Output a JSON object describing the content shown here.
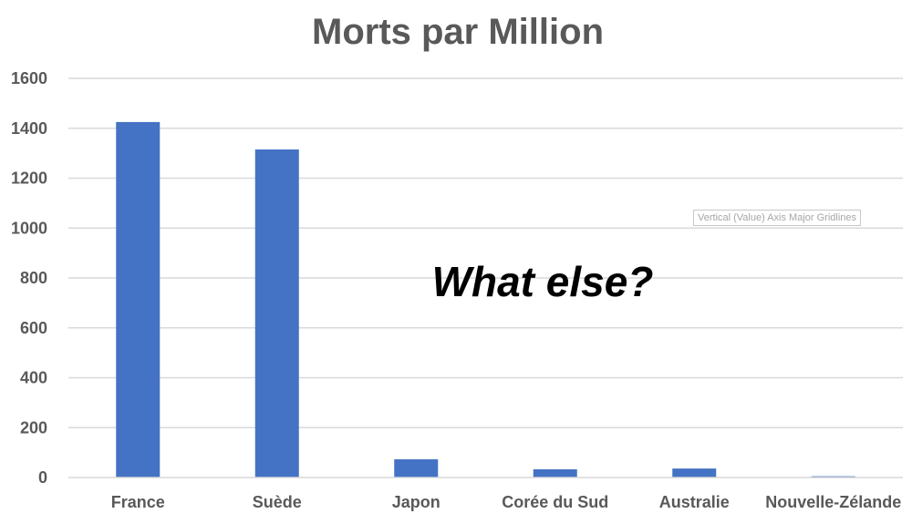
{
  "chart_data": {
    "type": "bar",
    "title": "Morts par Million",
    "categories": [
      "France",
      "Suède",
      "Japon",
      "Corée du Sud",
      "Australie",
      "Nouvelle-Zélande"
    ],
    "series": [
      {
        "values": [
          1425,
          1315,
          73,
          33,
          36,
          5
        ]
      }
    ],
    "ylim": [
      0,
      1600
    ],
    "yticks": [
      "0",
      "200",
      "400",
      "600",
      "800",
      "1000",
      "1200",
      "1400",
      "1600"
    ],
    "grid": true,
    "legend": "none",
    "bar_color": "#4472c4",
    "annotation": "What else?"
  },
  "tooltip": {
    "text": "Vertical (Value) Axis Major Gridlines"
  },
  "colors": {
    "bar": "#4472c4",
    "gridline": "#d9d9d9",
    "axis_text": "#595959"
  }
}
